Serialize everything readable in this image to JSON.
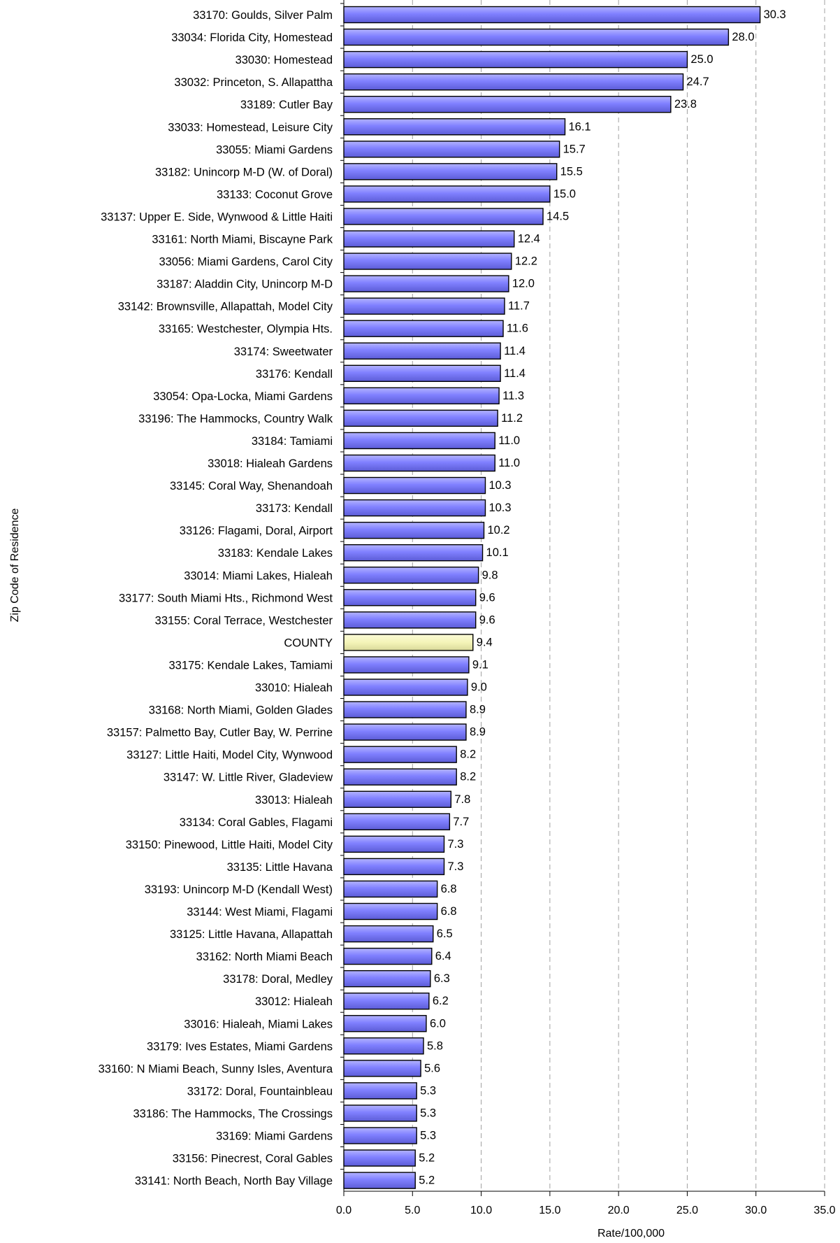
{
  "chart_data": {
    "type": "bar",
    "orientation": "horizontal",
    "xlabel": "Rate/100,000",
    "ylabel": "Zip Code of Residence",
    "xlim": [
      0,
      35
    ],
    "x_ticks": [
      "0.0",
      "5.0",
      "10.0",
      "15.0",
      "20.0",
      "25.0",
      "30.0",
      "35.0"
    ],
    "grid": "vertical dashed",
    "legend": "none",
    "colors": {
      "bar": "#8080ff",
      "bar_highlight": "#f5f5b8",
      "bar_outline": "#000000",
      "grid": "#a0a0a0"
    },
    "categories": [
      "33170:  Goulds, Silver Palm",
      "33034:  Florida City, Homestead",
      "33030:  Homestead",
      "33032:  Princeton, S. Allapattha",
      "33189:  Cutler Bay",
      "33033:  Homestead, Leisure City",
      "33055:  Miami Gardens",
      "33182:  Unincorp M-D (W. of Doral)",
      "33133:  Coconut Grove",
      "33137:  Upper E. Side, Wynwood & Little Haiti",
      "33161:  North Miami, Biscayne Park",
      "33056:  Miami Gardens, Carol City",
      "33187:  Aladdin City, Unincorp M-D",
      "33142:  Brownsville, Allapattah, Model City",
      "33165:  Westchester, Olympia Hts.",
      "33174:  Sweetwater",
      "33176:  Kendall",
      "33054:  Opa-Locka, Miami Gardens",
      "33196:  The Hammocks, Country Walk",
      "33184:  Tamiami",
      "33018:  Hialeah Gardens",
      "33145:  Coral Way, Shenandoah",
      "33173:  Kendall",
      "33126:  Flagami, Doral, Airport",
      "33183:  Kendale Lakes",
      "33014:  Miami Lakes, Hialeah",
      "33177:  South Miami Hts., Richmond West",
      "33155:  Coral Terrace, Westchester",
      "COUNTY",
      "33175:  Kendale Lakes, Tamiami",
      "33010:  Hialeah",
      "33168:  North Miami, Golden Glades",
      "33157:  Palmetto Bay, Cutler Bay, W. Perrine",
      "33127:  Little Haiti, Model City, Wynwood",
      "33147:  W. Little River, Gladeview",
      "33013:  Hialeah",
      "33134:  Coral Gables, Flagami",
      "33150:  Pinewood, Little Haiti, Model City",
      "33135:  Little Havana",
      "33193:  Unincorp M-D (Kendall West)",
      "33144:  West Miami, Flagami",
      "33125:  Little Havana, Allapattah",
      "33162:  North Miami Beach",
      "33178:  Doral, Medley",
      "33012:  Hialeah",
      "33016:  Hialeah, Miami Lakes",
      "33179:  Ives Estates, Miami Gardens",
      "33160:  N Miami Beach, Sunny Isles, Aventura",
      "33172:  Doral, Fountainbleau",
      "33186:  The Hammocks, The Crossings",
      "33169:  Miami Gardens",
      "33156:  Pinecrest, Coral Gables",
      "33141:  North Beach, North Bay Village"
    ],
    "values": [
      30.3,
      28.0,
      25.0,
      24.7,
      23.8,
      16.1,
      15.7,
      15.5,
      15.0,
      14.5,
      12.4,
      12.2,
      12.0,
      11.7,
      11.6,
      11.4,
      11.4,
      11.3,
      11.2,
      11.0,
      11.0,
      10.3,
      10.3,
      10.2,
      10.1,
      9.8,
      9.6,
      9.6,
      9.4,
      9.1,
      9.0,
      8.9,
      8.9,
      8.2,
      8.2,
      7.8,
      7.7,
      7.3,
      7.3,
      6.8,
      6.8,
      6.5,
      6.4,
      6.3,
      6.2,
      6.0,
      5.8,
      5.6,
      5.3,
      5.3,
      5.3,
      5.2,
      5.2
    ],
    "value_labels": [
      "30.3",
      "28.0",
      "25.0",
      "24.7",
      "23.8",
      "16.1",
      "15.7",
      "15.5",
      "15.0",
      "14.5",
      "12.4",
      "12.2",
      "12.0",
      "11.7",
      "11.6",
      "11.4",
      "11.4",
      "11.3",
      "11.2",
      "11.0",
      "11.0",
      "10.3",
      "10.3",
      "10.2",
      "10.1",
      "9.8",
      "9.6",
      "9.6",
      "9.4",
      "9.1",
      "9.0",
      "8.9",
      "8.9",
      "8.2",
      "8.2",
      "7.8",
      "7.7",
      "7.3",
      "7.3",
      "6.8",
      "6.8",
      "6.5",
      "6.4",
      "6.3",
      "6.2",
      "6.0",
      "5.8",
      "5.6",
      "5.3",
      "5.3",
      "5.3",
      "5.2",
      "5.2"
    ],
    "highlight": [
      "COUNTY"
    ]
  }
}
